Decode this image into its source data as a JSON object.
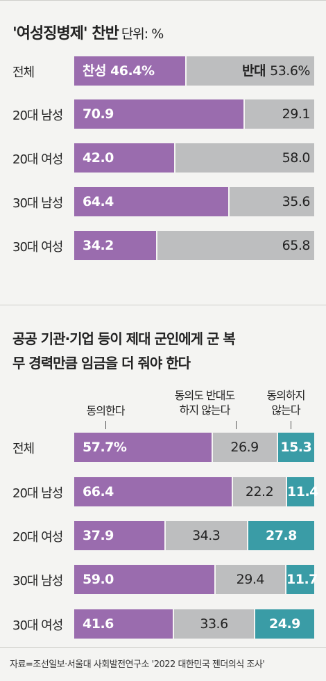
{
  "chart_data": [
    {
      "type": "bar",
      "title": "'여성징병제' 찬반",
      "unit_note": "단위: %",
      "categories": [
        "전체",
        "20대 남성",
        "20대 여성",
        "30대 남성",
        "30대 여성"
      ],
      "series": [
        {
          "name": "찬성",
          "values": [
            46.4,
            70.9,
            42.0,
            64.4,
            34.2
          ]
        },
        {
          "name": "반대",
          "values": [
            53.6,
            29.1,
            58.0,
            35.6,
            65.8
          ]
        }
      ],
      "value_labels": [
        [
          "찬성 46.4%",
          "반대 53.6%"
        ],
        [
          "70.9",
          "29.1"
        ],
        [
          "42.0",
          "58.0"
        ],
        [
          "64.4",
          "35.6"
        ],
        [
          "34.2",
          "65.8"
        ]
      ],
      "stacked": true,
      "orientation": "horizontal"
    },
    {
      "type": "bar",
      "title": "공공 기관·기업 등이 제대 군인에게 군 복무 경력만큼 임금을 더 줘야 한다",
      "categories": [
        "전체",
        "20대 남성",
        "20대 여성",
        "30대 남성",
        "30대 여성"
      ],
      "series": [
        {
          "name": "동의한다",
          "values": [
            57.7,
            66.4,
            37.9,
            59.0,
            41.6
          ]
        },
        {
          "name": "동의도 반대도 하지 않는다",
          "values": [
            26.9,
            22.2,
            34.3,
            29.4,
            33.6
          ]
        },
        {
          "name": "동의하지 않는다",
          "values": [
            15.3,
            11.4,
            27.8,
            11.7,
            24.9
          ]
        }
      ],
      "value_labels": [
        [
          "57.7%",
          "26.9",
          "15.3"
        ],
        [
          "66.4",
          "22.2",
          "11.4"
        ],
        [
          "37.9",
          "34.3",
          "27.8"
        ],
        [
          "59.0",
          "29.4",
          "11.7"
        ],
        [
          "41.6",
          "33.6",
          "24.9"
        ]
      ],
      "stacked": true,
      "orientation": "horizontal"
    }
  ],
  "colors": {
    "agree": "#9a6cae",
    "neutral": "#bdbebf",
    "disagree": "#3a9ca6"
  },
  "col_heads": {
    "agree": "동의한다",
    "neutral_line1": "동의도 반대도",
    "neutral_line2": "하지 않는다",
    "disagree_line1": "동의하지",
    "disagree_line2": "않는다"
  },
  "source": "자료=조선일보·서울대 사회발전연구소 '2022 대한민국 젠더의식 조사'"
}
